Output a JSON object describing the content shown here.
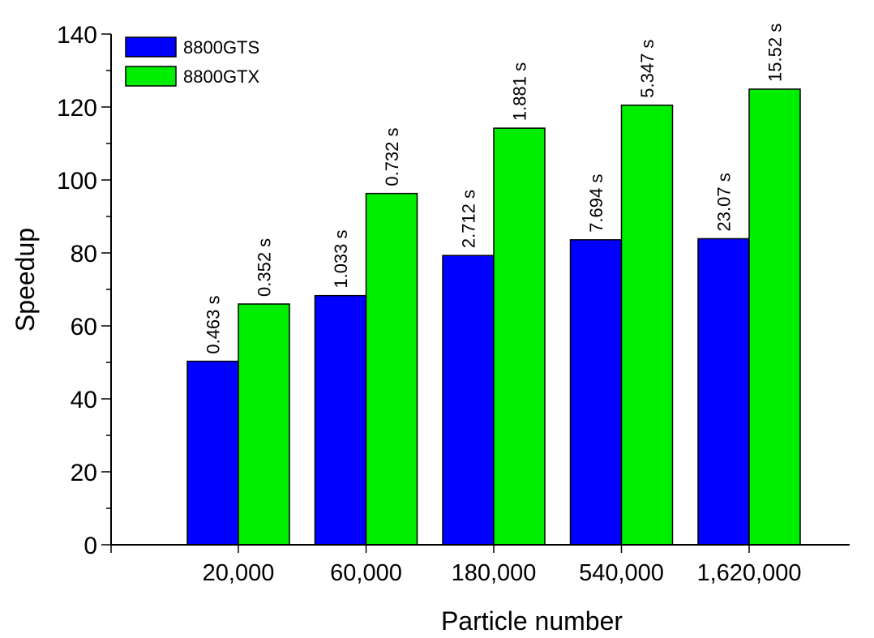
{
  "chart_data": {
    "type": "bar",
    "title": "",
    "xlabel": "Particle number",
    "ylabel": "Speedup",
    "ylim": [
      0,
      140
    ],
    "yticks": [
      "0",
      "20",
      "40",
      "60",
      "80",
      "100",
      "120",
      "140"
    ],
    "categories": [
      "20,000",
      "60,000",
      "180,000",
      "540,000",
      "1,620,000"
    ],
    "grid": false,
    "legend_position": "top-left",
    "series": [
      {
        "name": "8800GTS",
        "color": "#0000ff",
        "values": [
          50.3,
          68.3,
          79.3,
          83.6,
          83.9
        ],
        "labels": [
          "0.463 s",
          "1.033 s",
          "2.712 s",
          "7.694 s",
          "23.07 s"
        ]
      },
      {
        "name": "8800GTX",
        "color": "#00ee00",
        "values": [
          66.0,
          96.3,
          114.2,
          120.5,
          124.9
        ],
        "labels": [
          "0.352 s",
          "0.732 s",
          "1.881 s",
          "5.347 s",
          "15.52 s"
        ]
      }
    ]
  }
}
